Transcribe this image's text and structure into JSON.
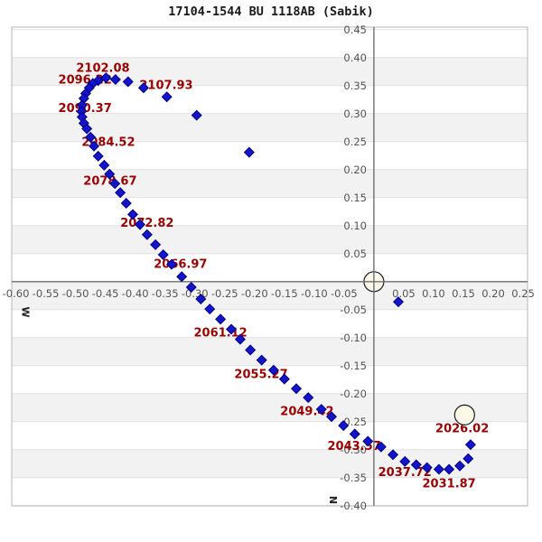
{
  "title": "17104-1544 BU 1118AB (Sabik)",
  "axes": {
    "x": {
      "direction_label": "W",
      "min": -0.6,
      "max": 0.25,
      "step": 0.05,
      "tick_labels": [
        "-0.60",
        "-0.55",
        "-0.50",
        "-0.45",
        "-0.40",
        "-0.35",
        "-0.30",
        "-0.25",
        "-0.20",
        "-0.15",
        "-0.10",
        "-0.05",
        "0.05",
        "0.10",
        "0.15",
        "0.20",
        "0.25"
      ]
    },
    "y": {
      "direction_label": "N",
      "min": -0.4,
      "max": 0.45,
      "step": 0.05,
      "tick_labels": [
        "0.45",
        "0.40",
        "0.35",
        "0.30",
        "0.25",
        "0.20",
        "0.15",
        "0.10",
        "0.05",
        "-0.05",
        "-0.10",
        "-0.15",
        "-0.20",
        "-0.25",
        "-0.30",
        "-0.35",
        "-0.40"
      ]
    }
  },
  "colors": {
    "point_blue": "#1414cc",
    "point_edge": "#000080",
    "label_red": "#990000",
    "tick_gray": "#555555",
    "band_gray": "#f2f2f2",
    "grid_line": "#e2e2e2",
    "axis_gray": "#6e6e6e",
    "border_gray": "#b5b5b5",
    "circle_fill": "#fcf8e8",
    "circle_edge": "#1a1a1a"
  },
  "chart_data": {
    "type": "scatter",
    "title": "17104-1544 BU 1118AB (Sabik)",
    "xlabel": "W",
    "ylabel": "N",
    "xlim": [
      -0.6,
      0.25
    ],
    "ylim": [
      -0.4,
      0.45
    ],
    "grid": "alternating horizontal bands every 0.05",
    "series": [
      {
        "name": "orbit-ephemeris-positions",
        "marker": "diamond",
        "points": [
          [
            -0.209,
            0.231
          ],
          [
            -0.297,
            0.297
          ],
          [
            -0.347,
            0.33
          ],
          [
            -0.386,
            0.346
          ],
          [
            -0.412,
            0.357
          ],
          [
            -0.433,
            0.361
          ],
          [
            -0.449,
            0.364
          ],
          [
            -0.462,
            0.359
          ],
          [
            -0.471,
            0.354
          ],
          [
            -0.477,
            0.346
          ],
          [
            -0.483,
            0.336
          ],
          [
            -0.486,
            0.327
          ],
          [
            -0.489,
            0.315
          ],
          [
            -0.49,
            0.304
          ],
          [
            -0.489,
            0.294
          ],
          [
            -0.486,
            0.283
          ],
          [
            -0.481,
            0.273
          ],
          [
            -0.475,
            0.258
          ],
          [
            -0.469,
            0.242
          ],
          [
            -0.462,
            0.224
          ],
          [
            -0.452,
            0.208
          ],
          [
            -0.443,
            0.192
          ],
          [
            -0.434,
            0.175
          ],
          [
            -0.425,
            0.159
          ],
          [
            -0.415,
            0.14
          ],
          [
            -0.404,
            0.12
          ],
          [
            -0.392,
            0.102
          ],
          [
            -0.38,
            0.084
          ],
          [
            -0.366,
            0.066
          ],
          [
            -0.353,
            0.048
          ],
          [
            -0.339,
            0.031
          ],
          [
            -0.322,
            0.009
          ],
          [
            -0.306,
            -0.01
          ],
          [
            -0.29,
            -0.031
          ],
          [
            -0.275,
            -0.049
          ],
          [
            -0.257,
            -0.067
          ],
          [
            -0.239,
            -0.085
          ],
          [
            -0.224,
            -0.103
          ],
          [
            -0.207,
            -0.122
          ],
          [
            -0.188,
            -0.14
          ],
          [
            -0.168,
            -0.158
          ],
          [
            -0.15,
            -0.174
          ],
          [
            -0.13,
            -0.191
          ],
          [
            -0.11,
            -0.207
          ],
          [
            -0.088,
            -0.228
          ],
          [
            -0.071,
            -0.241
          ],
          [
            -0.051,
            -0.257
          ],
          [
            -0.032,
            -0.272
          ],
          [
            -0.01,
            -0.285
          ],
          [
            0.012,
            -0.295
          ],
          [
            0.032,
            -0.309
          ],
          [
            0.052,
            -0.321
          ],
          [
            0.071,
            -0.327
          ],
          [
            0.089,
            -0.332
          ],
          [
            0.109,
            -0.335
          ],
          [
            0.126,
            -0.335
          ],
          [
            0.144,
            -0.329
          ],
          [
            0.158,
            -0.316
          ],
          [
            0.162,
            -0.291
          ],
          [
            0.041,
            -0.036
          ]
        ]
      }
    ],
    "markers": [
      {
        "name": "primary-star-circle",
        "x": 0.0,
        "y": 0.0,
        "radius_px": 11
      },
      {
        "name": "epoch-position-circle",
        "x": 0.152,
        "y": -0.238,
        "radius_px": 11
      }
    ],
    "point_labels": [
      {
        "text": "2102.08",
        "x": -0.454,
        "y": 0.382
      },
      {
        "text": "2096.22",
        "x": -0.484,
        "y": 0.361
      },
      {
        "text": "2107.93",
        "x": -0.348,
        "y": 0.351
      },
      {
        "text": "2090.37",
        "x": -0.484,
        "y": 0.31
      },
      {
        "text": "2084.52",
        "x": -0.445,
        "y": 0.25
      },
      {
        "text": "2078.67",
        "x": -0.442,
        "y": 0.18
      },
      {
        "text": "2072.82",
        "x": -0.38,
        "y": 0.105
      },
      {
        "text": "2066.97",
        "x": -0.324,
        "y": 0.032
      },
      {
        "text": "2061.12",
        "x": -0.257,
        "y": -0.091
      },
      {
        "text": "2055.27",
        "x": -0.189,
        "y": -0.165
      },
      {
        "text": "2049.42",
        "x": -0.112,
        "y": -0.231
      },
      {
        "text": "2043.57",
        "x": -0.033,
        "y": -0.293
      },
      {
        "text": "2037.72",
        "x": 0.052,
        "y": -0.34
      },
      {
        "text": "2031.87",
        "x": 0.126,
        "y": -0.36
      },
      {
        "text": "2026.02",
        "x": 0.148,
        "y": -0.262
      }
    ]
  }
}
